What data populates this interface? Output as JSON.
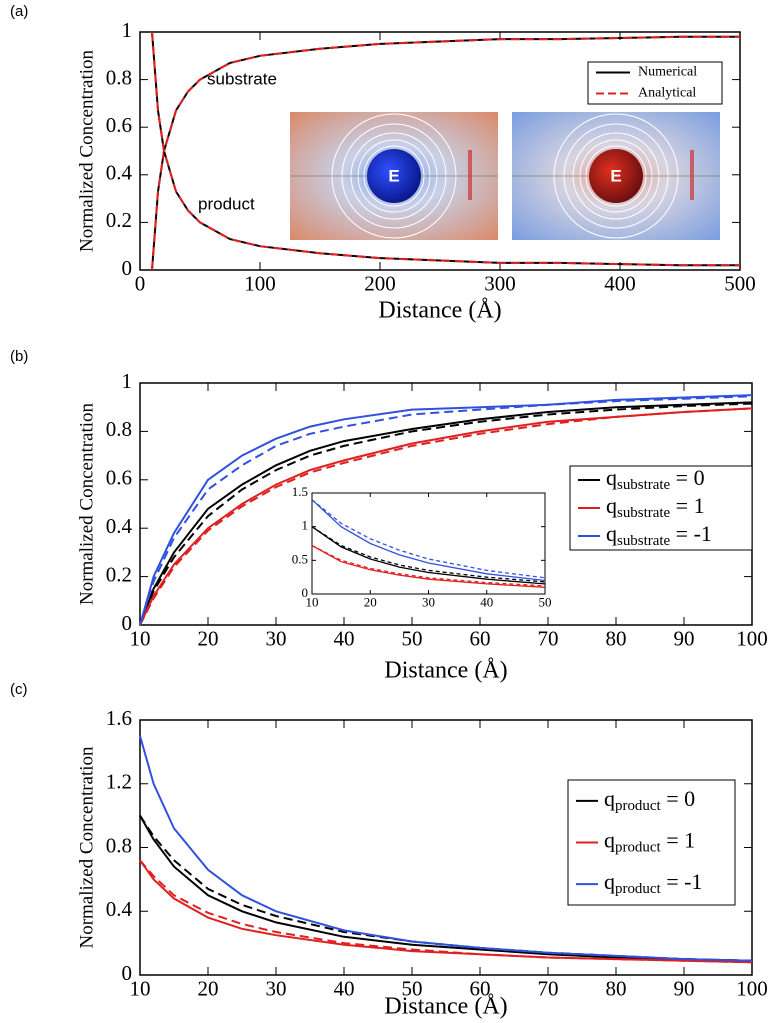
{
  "chart_data": [
    {
      "type": "line",
      "panel_label": "(a)",
      "xlabel": "Distance (Å)",
      "ylabel": "Normalized Concentration",
      "xlim": [
        0,
        500
      ],
      "ylim": [
        0,
        1
      ],
      "xticks": [
        0,
        100,
        200,
        300,
        400,
        500
      ],
      "yticks": [
        0,
        0.2,
        0.4,
        0.6,
        0.8,
        1
      ],
      "x": [
        10,
        15,
        20,
        30,
        40,
        50,
        75,
        100,
        150,
        200,
        250,
        300,
        350,
        400,
        450,
        500
      ],
      "series": [
        {
          "name": "Numerical",
          "color": "#000000",
          "dashed": false,
          "values": [
            0,
            0.33,
            0.5,
            0.67,
            0.75,
            0.8,
            0.87,
            0.9,
            0.93,
            0.95,
            0.96,
            0.97,
            0.97,
            0.975,
            0.98,
            0.98
          ]
        },
        {
          "name": "Analytical",
          "color": "#e02020",
          "dashed": true,
          "values": [
            0,
            0.33,
            0.5,
            0.67,
            0.75,
            0.8,
            0.87,
            0.9,
            0.93,
            0.95,
            0.96,
            0.97,
            0.97,
            0.975,
            0.98,
            0.98
          ]
        },
        {
          "color": "#000000",
          "dashed": false,
          "values": [
            1,
            0.67,
            0.5,
            0.33,
            0.25,
            0.2,
            0.13,
            0.1,
            0.07,
            0.05,
            0.04,
            0.03,
            0.03,
            0.025,
            0.02,
            0.02
          ]
        },
        {
          "color": "#e02020",
          "dashed": true,
          "values": [
            1,
            0.67,
            0.5,
            0.33,
            0.25,
            0.2,
            0.13,
            0.1,
            0.07,
            0.05,
            0.04,
            0.03,
            0.03,
            0.025,
            0.02,
            0.02
          ]
        }
      ],
      "annotations": [
        "substrate",
        "product"
      ],
      "inset_labels": [
        "E",
        "E"
      ]
    },
    {
      "type": "line",
      "panel_label": "(b)",
      "xlabel": "Distance (Å)",
      "ylabel": "Normalized Concentration",
      "xlim": [
        10,
        100
      ],
      "ylim": [
        0,
        1
      ],
      "xticks": [
        10,
        20,
        30,
        40,
        50,
        60,
        70,
        80,
        90,
        100
      ],
      "yticks": [
        0,
        0.2,
        0.4,
        0.6,
        0.8,
        1
      ],
      "x": [
        10,
        12,
        15,
        20,
        25,
        30,
        35,
        40,
        50,
        60,
        70,
        80,
        90,
        100
      ],
      "series": [
        {
          "name": {
            "base": "q",
            "sub": "substrate",
            "rest": " = 0"
          },
          "color": "#000000",
          "dashed": false,
          "values": [
            0,
            0.15,
            0.3,
            0.48,
            0.58,
            0.66,
            0.72,
            0.76,
            0.81,
            0.85,
            0.88,
            0.9,
            0.91,
            0.92
          ]
        },
        {
          "color": "#000000",
          "dashed": true,
          "values": [
            0,
            0.14,
            0.28,
            0.45,
            0.56,
            0.64,
            0.7,
            0.74,
            0.8,
            0.84,
            0.87,
            0.89,
            0.905,
            0.915
          ]
        },
        {
          "name": {
            "base": "q",
            "sub": "substrate",
            "rest": " = 1"
          },
          "color": "#e02020",
          "dashed": false,
          "values": [
            0,
            0.12,
            0.25,
            0.4,
            0.5,
            0.58,
            0.64,
            0.68,
            0.75,
            0.8,
            0.84,
            0.86,
            0.88,
            0.895
          ]
        },
        {
          "color": "#e02020",
          "dashed": true,
          "values": [
            0,
            0.11,
            0.24,
            0.39,
            0.49,
            0.57,
            0.63,
            0.67,
            0.74,
            0.79,
            0.83,
            0.86,
            0.88,
            0.895
          ]
        },
        {
          "name": {
            "base": "q",
            "sub": "substrate",
            "rest": " = -1"
          },
          "color": "#3050e0",
          "dashed": false,
          "values": [
            0,
            0.2,
            0.38,
            0.6,
            0.7,
            0.77,
            0.82,
            0.85,
            0.89,
            0.9,
            0.91,
            0.93,
            0.94,
            0.95
          ]
        },
        {
          "color": "#3050e0",
          "dashed": true,
          "values": [
            0,
            0.18,
            0.36,
            0.56,
            0.66,
            0.74,
            0.79,
            0.82,
            0.87,
            0.89,
            0.91,
            0.925,
            0.935,
            0.945
          ]
        }
      ]
    },
    {
      "type": "line",
      "xlim": [
        10,
        50
      ],
      "ylim": [
        0,
        1.5
      ],
      "xticks": [
        10,
        20,
        30,
        40,
        50
      ],
      "yticks": [
        0,
        0.5,
        1,
        1.5
      ],
      "x": [
        10,
        15,
        20,
        25,
        30,
        40,
        50
      ],
      "series": [
        {
          "color": "#000000",
          "dashed": false,
          "values": [
            1,
            0.7,
            0.52,
            0.4,
            0.32,
            0.22,
            0.15
          ]
        },
        {
          "color": "#000000",
          "dashed": true,
          "values": [
            1,
            0.72,
            0.55,
            0.43,
            0.35,
            0.25,
            0.18
          ]
        },
        {
          "color": "#e02020",
          "dashed": false,
          "values": [
            0.72,
            0.48,
            0.36,
            0.28,
            0.22,
            0.15,
            0.1
          ]
        },
        {
          "color": "#e02020",
          "dashed": true,
          "values": [
            0.72,
            0.5,
            0.38,
            0.3,
            0.24,
            0.17,
            0.12
          ]
        },
        {
          "color": "#3050e0",
          "dashed": false,
          "values": [
            1.4,
            1.0,
            0.75,
            0.58,
            0.46,
            0.3,
            0.2
          ]
        },
        {
          "color": "#3050e0",
          "dashed": true,
          "values": [
            1.4,
            1.05,
            0.82,
            0.65,
            0.52,
            0.35,
            0.24
          ]
        }
      ]
    },
    {
      "type": "line",
      "panel_label": "(c)",
      "xlabel": "Distance (Å)",
      "ylabel": "Normalized Concentration",
      "xlim": [
        10,
        100
      ],
      "ylim": [
        0,
        1.6
      ],
      "xticks": [
        10,
        20,
        30,
        40,
        50,
        60,
        70,
        80,
        90,
        100
      ],
      "yticks": [
        0,
        0.4,
        0.8,
        1.2,
        1.6
      ],
      "x": [
        10,
        12,
        15,
        20,
        25,
        30,
        40,
        50,
        60,
        70,
        80,
        90,
        100
      ],
      "series": [
        {
          "name": {
            "base": "q",
            "sub": "product",
            "rest": " = 0"
          },
          "color": "#000000",
          "dashed": false,
          "values": [
            1,
            0.85,
            0.68,
            0.5,
            0.4,
            0.33,
            0.24,
            0.19,
            0.16,
            0.13,
            0.11,
            0.1,
            0.09
          ]
        },
        {
          "color": "#000000",
          "dashed": true,
          "values": [
            1,
            0.87,
            0.72,
            0.54,
            0.44,
            0.37,
            0.27,
            0.21,
            0.17,
            0.14,
            0.12,
            0.1,
            0.09
          ]
        },
        {
          "name": {
            "base": "q",
            "sub": "product",
            "rest": " = 1"
          },
          "color": "#e02020",
          "dashed": false,
          "values": [
            0.72,
            0.6,
            0.48,
            0.36,
            0.29,
            0.25,
            0.19,
            0.15,
            0.13,
            0.11,
            0.1,
            0.09,
            0.08
          ]
        },
        {
          "color": "#e02020",
          "dashed": true,
          "values": [
            0.72,
            0.62,
            0.5,
            0.39,
            0.32,
            0.27,
            0.2,
            0.16,
            0.13,
            0.11,
            0.1,
            0.09,
            0.08
          ]
        },
        {
          "name": {
            "base": "q",
            "sub": "product",
            "rest": " = -1"
          },
          "color": "#3050e0",
          "dashed": false,
          "values": [
            1.5,
            1.2,
            0.92,
            0.66,
            0.5,
            0.4,
            0.28,
            0.21,
            0.17,
            0.14,
            0.12,
            0.1,
            0.09
          ]
        }
      ]
    }
  ]
}
